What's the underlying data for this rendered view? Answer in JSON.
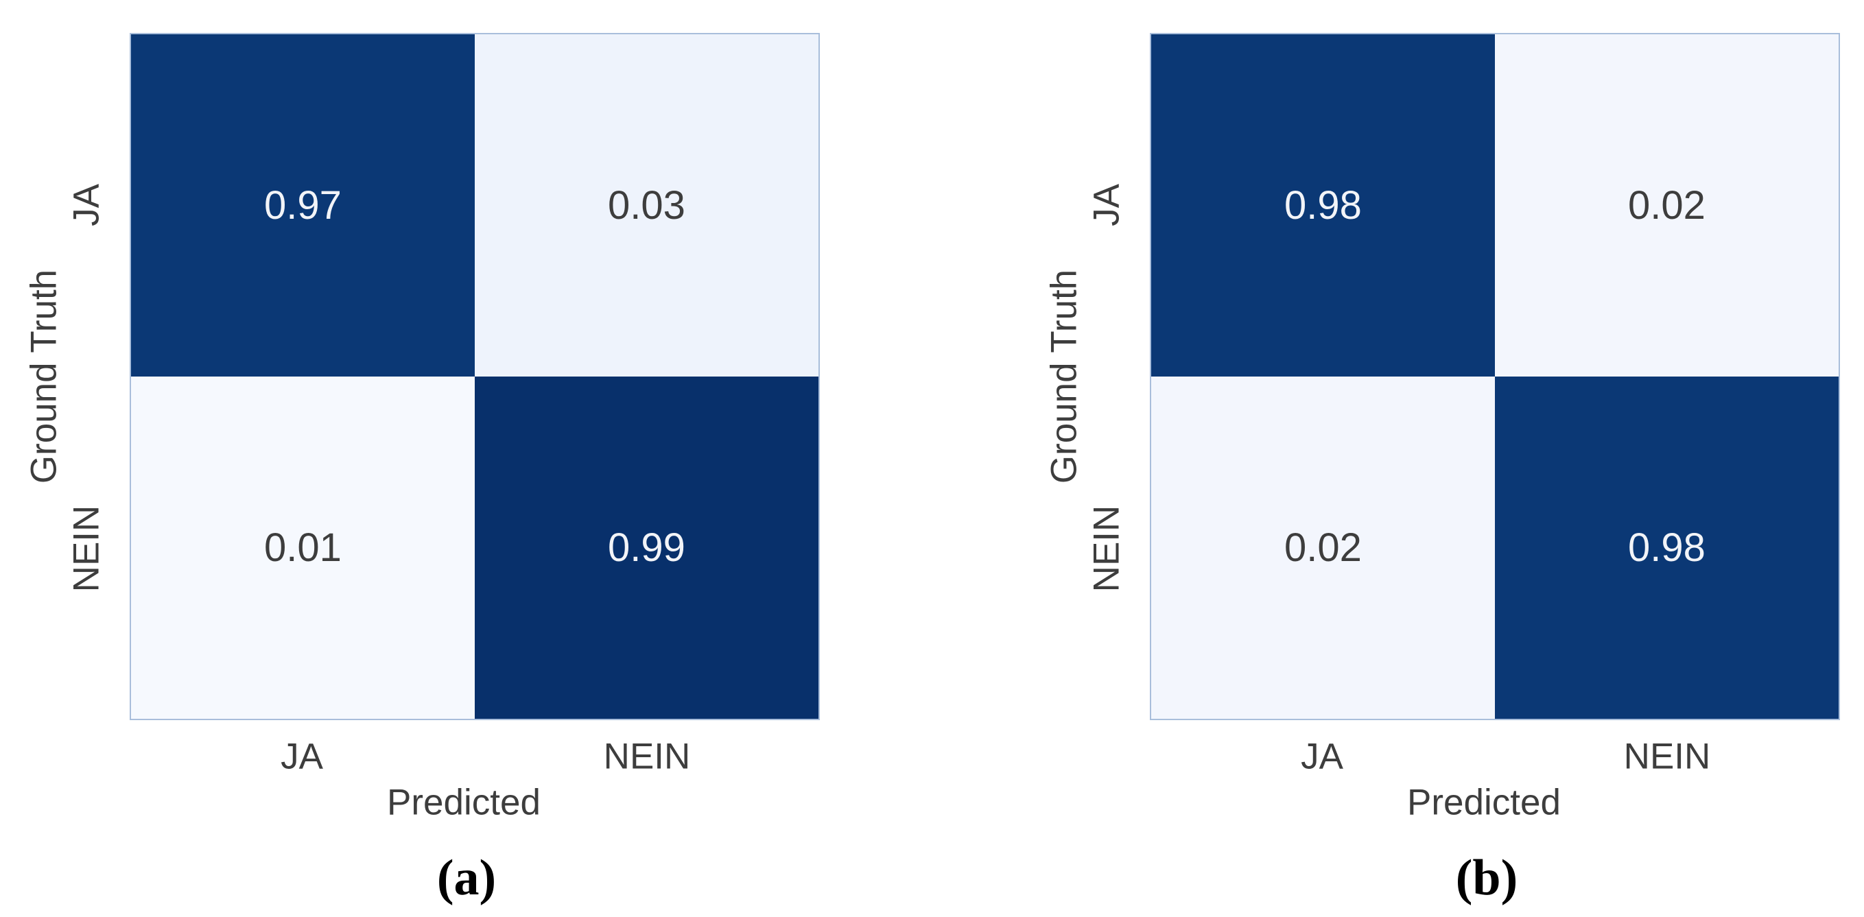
{
  "colors": {
    "background": "#ffffff",
    "cell_dark": "#0b3875",
    "cell_dark_deep": "#08306b",
    "cell_light_01": "#f6f9fe",
    "cell_light_02": "#f3f6fd",
    "cell_light_03": "#eef3fc",
    "heatmap_border": "#a9bedb",
    "label_text": "#3d3d3d",
    "value_on_dark": "#f2f4f8",
    "value_on_light": "#3d3d3d",
    "caption_text": "#000000"
  },
  "chart_data": [
    {
      "type": "heatmap",
      "caption": "(a)",
      "xlabel": "Predicted",
      "ylabel": "Ground Truth",
      "x_categories": [
        "JA",
        "NEIN"
      ],
      "y_categories": [
        "JA",
        "NEIN"
      ],
      "values": [
        [
          0.97,
          0.03
        ],
        [
          0.01,
          0.99
        ]
      ],
      "value_range": [
        0,
        1
      ],
      "colormap": "Blues",
      "legend": "none",
      "grid": "off"
    },
    {
      "type": "heatmap",
      "caption": "(b)",
      "xlabel": "Predicted",
      "ylabel": "Ground Truth",
      "x_categories": [
        "JA",
        "NEIN"
      ],
      "y_categories": [
        "JA",
        "NEIN"
      ],
      "values": [
        [
          0.98,
          0.02
        ],
        [
          0.02,
          0.98
        ]
      ],
      "value_range": [
        0,
        1
      ],
      "colormap": "Blues",
      "legend": "none",
      "grid": "off"
    }
  ]
}
